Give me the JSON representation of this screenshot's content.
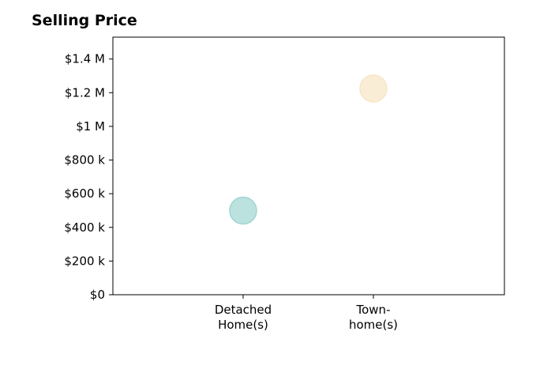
{
  "chart_data": {
    "type": "scatter",
    "title": "Selling Price",
    "xlabel": "",
    "ylabel": "",
    "categories": [
      [
        "Detached",
        "Home(s)"
      ],
      [
        "Town-",
        "home(s)"
      ]
    ],
    "values": [
      500000,
      1225000
    ],
    "point_colors": [
      "#9fd5d1",
      "#f7e6c4"
    ],
    "ylim": [
      0,
      1530000
    ],
    "yticks": [
      0,
      200000,
      400000,
      600000,
      800000,
      1000000,
      1200000,
      1400000
    ],
    "ytick_labels": [
      "$0",
      "$200 k",
      "$400 k",
      "$600 k",
      "$800 k",
      "$1 M",
      "$1.2 M",
      "$1.4 M"
    ],
    "grid": false,
    "legend": "none"
  }
}
